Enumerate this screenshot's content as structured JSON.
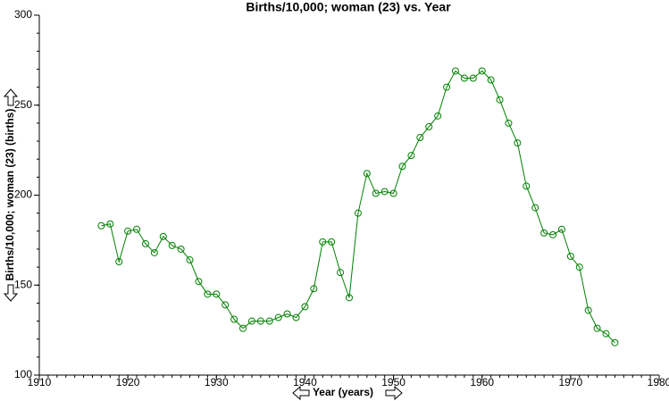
{
  "chart_data": {
    "type": "line",
    "title": "Births/10,000; woman (23) vs. Year",
    "x_label": "Year (years)",
    "y_label": "Births/10,000; woman (23) (births)",
    "x": [
      1917,
      1918,
      1919,
      1920,
      1921,
      1922,
      1923,
      1924,
      1925,
      1926,
      1927,
      1928,
      1929,
      1930,
      1931,
      1932,
      1933,
      1934,
      1935,
      1936,
      1937,
      1938,
      1939,
      1940,
      1941,
      1942,
      1943,
      1944,
      1945,
      1946,
      1947,
      1948,
      1949,
      1950,
      1951,
      1952,
      1953,
      1954,
      1955,
      1956,
      1957,
      1958,
      1959,
      1960,
      1961,
      1962,
      1963,
      1964,
      1965,
      1966,
      1967,
      1968,
      1969,
      1970,
      1971,
      1972,
      1973,
      1974,
      1975
    ],
    "series": [
      {
        "name": "Births/10,000; woman (23)",
        "color": "#008000",
        "values": [
          183,
          184,
          163,
          180,
          181,
          173,
          168,
          177,
          172,
          170,
          164,
          152,
          145,
          145,
          139,
          131,
          126,
          130,
          130,
          130,
          132,
          134,
          132,
          138,
          148,
          174,
          174,
          157,
          143,
          190,
          212,
          201,
          202,
          201,
          216,
          222,
          232,
          238,
          244,
          260,
          269,
          265,
          265,
          269,
          264,
          253,
          240,
          229,
          205,
          193,
          179,
          178,
          181,
          166,
          160,
          136,
          126,
          123,
          118
        ]
      }
    ],
    "xlim": [
      1910,
      1980
    ],
    "xticks": [
      1910,
      1920,
      1930,
      1940,
      1950,
      1960,
      1970,
      1980
    ],
    "ylim": [
      100,
      300
    ],
    "yticks": [
      100,
      150,
      200,
      250,
      300
    ]
  }
}
